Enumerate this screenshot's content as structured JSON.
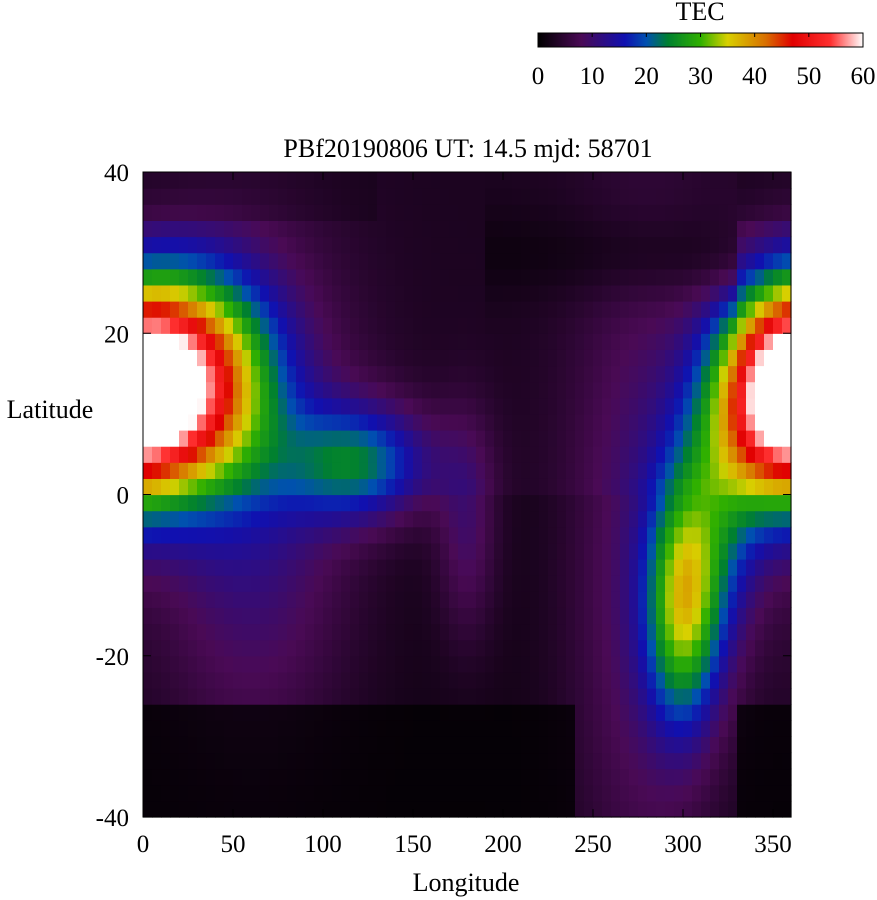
{
  "chart_data": {
    "type": "heatmap",
    "title": "PBf20190806  UT: 14.5  mjd: 58701",
    "xlabel": "Longitude",
    "ylabel": "Latitude",
    "xlim": [
      0,
      360
    ],
    "ylim": [
      -40,
      40
    ],
    "x_ticks": [
      0,
      50,
      100,
      150,
      200,
      250,
      300,
      350
    ],
    "y_ticks": [
      -40,
      -20,
      0,
      20,
      40
    ],
    "colorbar": {
      "label": "TEC",
      "range": [
        0,
        60
      ],
      "ticks": [
        0,
        10,
        20,
        30,
        40,
        50,
        60
      ],
      "stops": [
        {
          "v": 0,
          "color": "#000000"
        },
        {
          "v": 8,
          "color": "#4a0a55"
        },
        {
          "v": 16,
          "color": "#1010b0"
        },
        {
          "v": 20,
          "color": "#0050b0"
        },
        {
          "v": 24,
          "color": "#008030"
        },
        {
          "v": 30,
          "color": "#30b000"
        },
        {
          "v": 35,
          "color": "#d8d000"
        },
        {
          "v": 42,
          "color": "#d87000"
        },
        {
          "v": 47,
          "color": "#e00000"
        },
        {
          "v": 54,
          "color": "#ff3030"
        },
        {
          "v": 60,
          "color": "#ffffff"
        }
      ]
    },
    "grid": false,
    "legend": "colorbar top-right",
    "model": {
      "description_units": "TEC components in data units (lon deg, lat deg, TEC)",
      "background_north": 3,
      "background_south": 2,
      "trough_lat_center": 30,
      "trough_lat_width": 4,
      "dark_south_boundary_lat": -25,
      "blobs": [
        {
          "lon": 25,
          "lat": 14,
          "slon": 30,
          "slat": 9,
          "amp": 43
        },
        {
          "lon": 5,
          "lat": 14,
          "slon": 25,
          "slat": 9,
          "amp": 8
        },
        {
          "lon": 120,
          "lat": 4,
          "slon": 28,
          "slat": 5,
          "amp": 18
        },
        {
          "lon": 60,
          "lat": 0,
          "slon": 40,
          "slat": 22,
          "amp": 10
        },
        {
          "lon": 350,
          "lat": 12,
          "slon": 22,
          "slat": 9,
          "amp": 40
        },
        {
          "lon": 300,
          "lat": -14,
          "slon": 14,
          "slat": 10,
          "amp": 24
        },
        {
          "lon": 318,
          "lat": -2,
          "slon": 18,
          "slat": 12,
          "amp": 14
        },
        {
          "lon": 180,
          "lat": -4,
          "slon": 12,
          "slat": 10,
          "amp": 7
        },
        {
          "lon": 280,
          "lat": -10,
          "slon": 30,
          "slat": 30,
          "amp": 8
        }
      ]
    }
  }
}
